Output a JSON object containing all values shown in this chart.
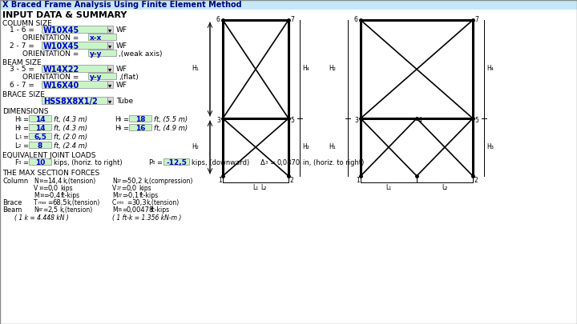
{
  "title": "X Braced Frame Analysis Using Finite Element Method",
  "title_bg": "#c5e8f7",
  "bg_color": "#fefef2",
  "green_fill": "#c8f5c8",
  "blue_text": "#0000cc",
  "input_header": "INPUT DATA & SUMMARY",
  "col_size_label": "COLUMN SIZE",
  "beam_size_label": "BEAM SIZE",
  "brace_size_label": "BRACE SIZE",
  "dim_label": "DIMENSIONS",
  "joint_loads_label": "EQUIVALENT JOINT LOADS",
  "max_forces_label": "THE MAX SECTION FORCES"
}
